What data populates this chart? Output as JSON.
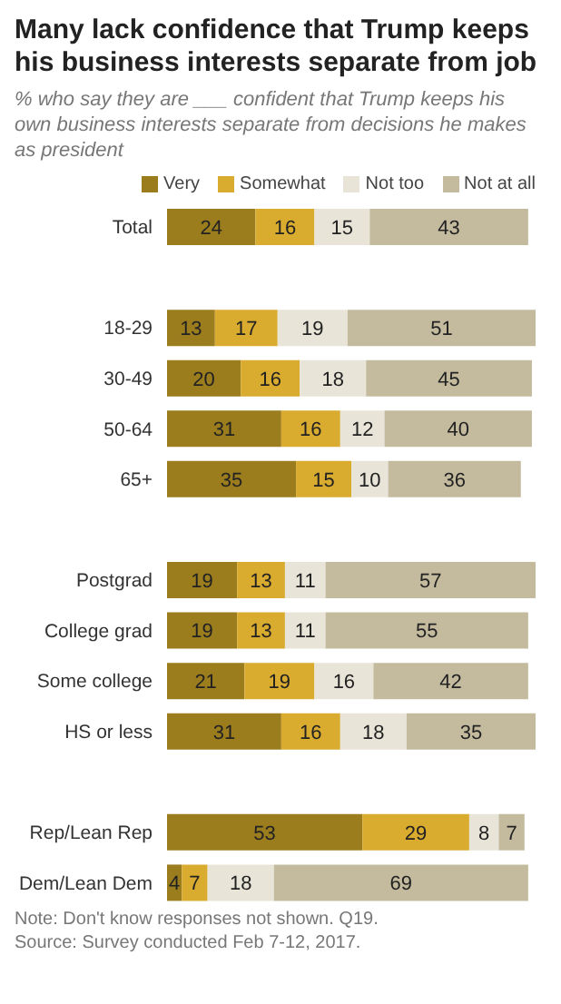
{
  "chart_data": {
    "type": "bar",
    "orientation": "horizontal",
    "stacked": true,
    "tick_labels": false,
    "data_labels": true,
    "legend": "top",
    "title": "Many lack confidence that Trump keeps his business interests separate from job",
    "subtitle": "% who say they are ___ confident that Trump keeps his own business interests separate from decisions he makes as president",
    "categories": [
      "Total",
      null,
      "18-29",
      "30-49",
      "50-64",
      "65+",
      null,
      "Postgrad",
      "College grad",
      "Some college",
      "HS or less",
      null,
      "Rep/Lean Rep",
      "Dem/Lean Dem"
    ],
    "series": [
      {
        "name": "Very",
        "color": "#9c7d1e",
        "values": [
          24,
          null,
          13,
          20,
          31,
          35,
          null,
          19,
          19,
          21,
          31,
          null,
          53,
          4
        ]
      },
      {
        "name": "Somewhat",
        "color": "#d9ab2f",
        "values": [
          16,
          null,
          17,
          16,
          16,
          15,
          null,
          13,
          13,
          19,
          16,
          null,
          29,
          7
        ]
      },
      {
        "name": "Not too",
        "color": "#e8e5d8",
        "values": [
          15,
          null,
          19,
          18,
          12,
          10,
          null,
          11,
          11,
          16,
          18,
          null,
          8,
          18
        ]
      },
      {
        "name": "Not at all",
        "color": "#c4bb9f",
        "values": [
          43,
          null,
          51,
          45,
          40,
          36,
          null,
          57,
          55,
          42,
          35,
          null,
          7,
          69
        ]
      }
    ],
    "annotations": [
      "Note: Don't know responses not shown. Q19.",
      "Source: Survey conducted Feb 7-12, 2017."
    ]
  }
}
